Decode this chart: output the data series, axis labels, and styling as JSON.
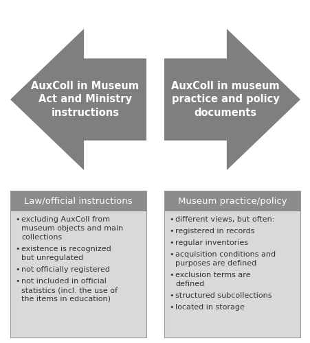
{
  "arrow_color": "#7f7f7f",
  "box_header_color": "#8c8c8c",
  "box_body_color": "#d9d9d9",
  "text_color_white": "#ffffff",
  "text_color_dark": "#333333",
  "left_arrow_text": "AuxColl in Museum\nAct and Ministry\ninstructions",
  "right_arrow_text": "AuxColl in museum\npractice and policy\ndocuments",
  "left_box_header": "Law/official instructions",
  "right_box_header": "Museum practice/policy",
  "left_bullets": [
    "excluding AuxColl from\nmuseum objects and main\ncollections",
    "existence is recognized\nbut unregulated",
    "not officially registered",
    "not included in official\nstatistics (incl. the use of\nthe items in education)"
  ],
  "right_bullets": [
    "different views, but often:",
    "registered in records",
    "regular inventories",
    "acquisition conditions and\npurposes are defined",
    "exclusion terms are\ndefined",
    "structured subcollections",
    "located in storage"
  ],
  "background_color": "#ffffff"
}
